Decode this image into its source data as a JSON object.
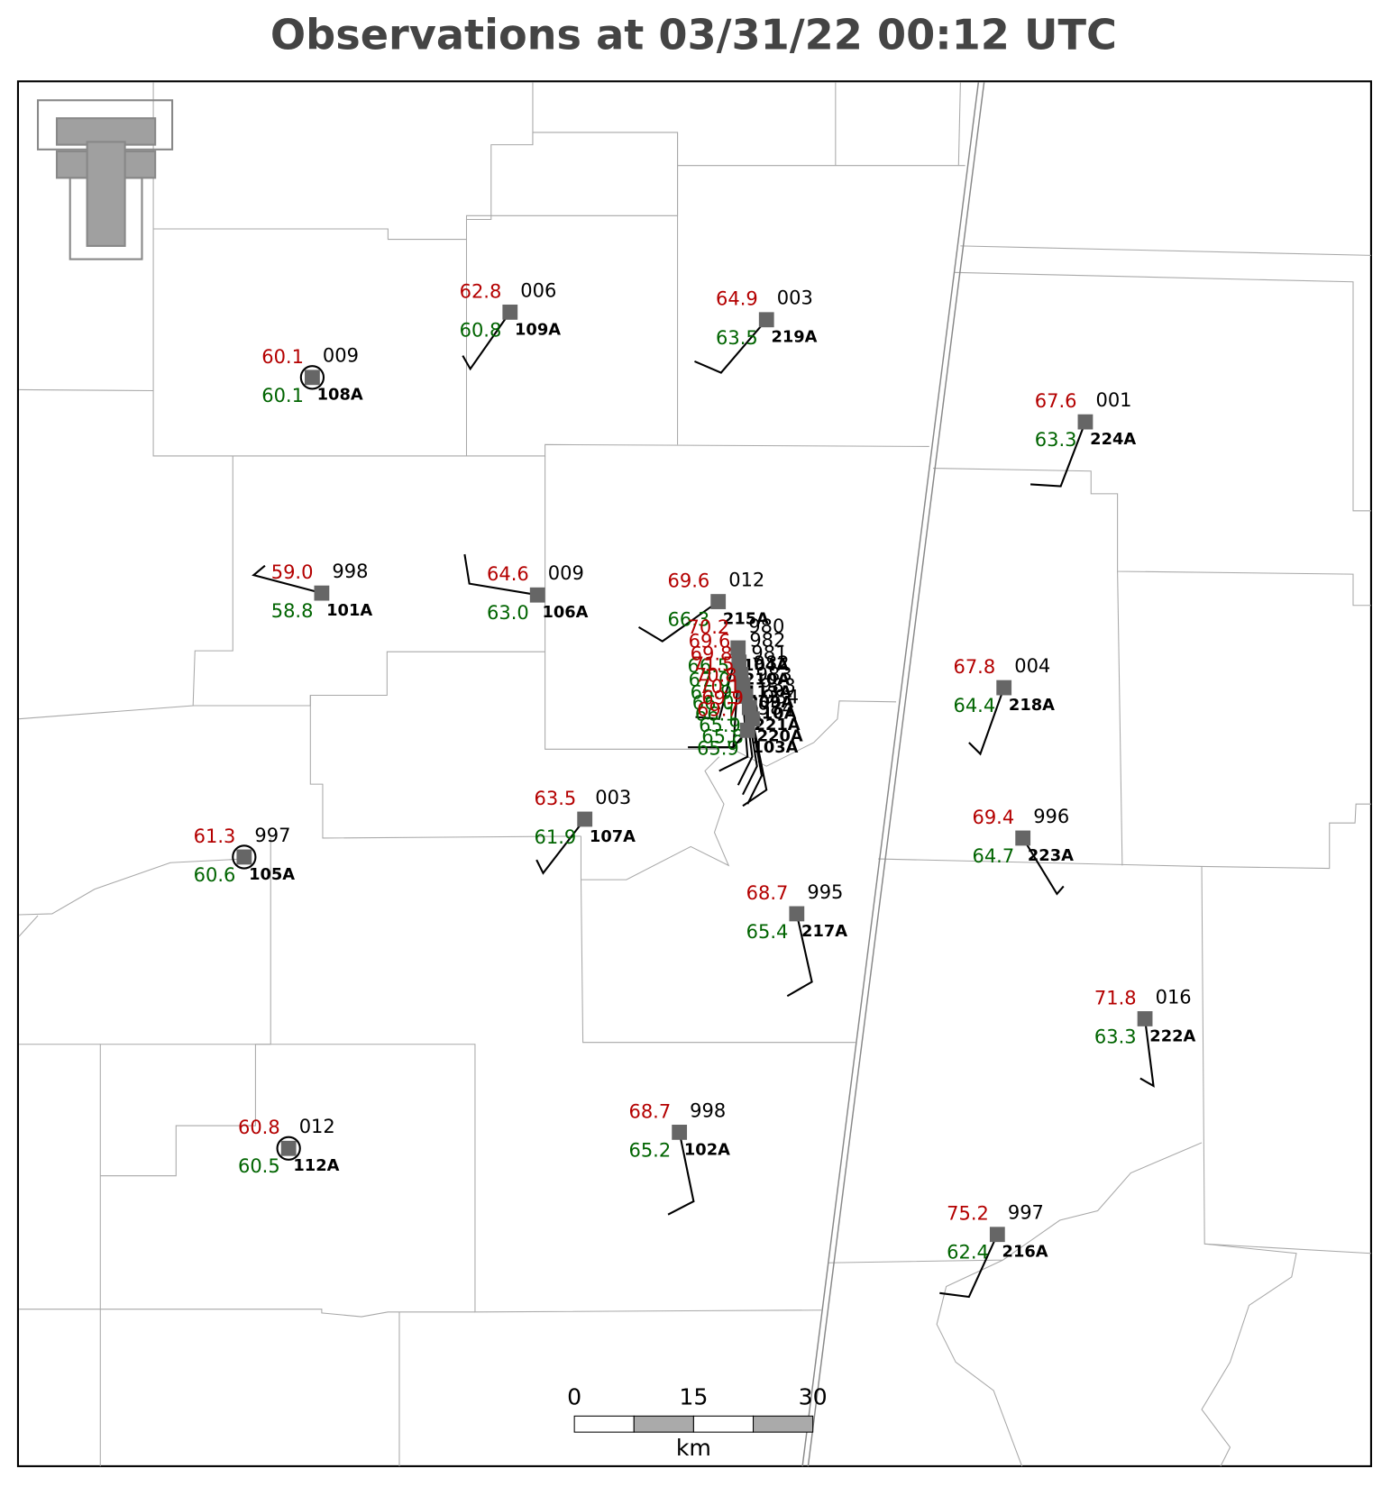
{
  "title": "Observations at 03/31/22 00:12 UTC",
  "stations": [
    {
      "id": "108A",
      "temp": "60.1",
      "dewpoint": "60.1",
      "pressure": "009"
    },
    {
      "id": "109A",
      "temp": "62.8",
      "dewpoint": "60.8",
      "pressure": "006"
    },
    {
      "id": "219A",
      "temp": "64.9",
      "dewpoint": "63.5",
      "pressure": "003"
    },
    {
      "id": "224A",
      "temp": "67.6",
      "dewpoint": "63.3",
      "pressure": "001"
    },
    {
      "id": "101A",
      "temp": "59.0",
      "dewpoint": "58.8",
      "pressure": "998"
    },
    {
      "id": "106A",
      "temp": "64.6",
      "dewpoint": "63.0",
      "pressure": "009"
    },
    {
      "id": "215A",
      "temp": "69.6",
      "dewpoint": "66.3",
      "pressure": "012"
    },
    {
      "id": "104A",
      "temp": "70.2",
      "dewpoint": "66.5",
      "pressure": "980"
    },
    {
      "id": "210A",
      "temp": "69.6",
      "dewpoint": "67.0",
      "pressure": "982"
    },
    {
      "id": "113A",
      "temp": "69.8",
      "dewpoint": "65.9",
      "pressure": "981"
    },
    {
      "id": "209A",
      "temp": "71.5",
      "dewpoint": "66.0",
      "pressure": "982"
    },
    {
      "id": "110A",
      "temp": "70.8",
      "dewpoint": "66.1",
      "pressure": "983"
    },
    {
      "id": "221A",
      "temp": "70.1",
      "dewpoint": "65.9",
      "pressure": "983"
    },
    {
      "id": "220A",
      "temp": "69.9",
      "dewpoint": "65.8",
      "pressure": "984"
    },
    {
      "id": "103A",
      "temp": "69.7",
      "dewpoint": "65.9",
      "pressure": "984"
    },
    {
      "id": "218A",
      "temp": "67.8",
      "dewpoint": "64.4",
      "pressure": "004"
    },
    {
      "id": "107A",
      "temp": "63.5",
      "dewpoint": "61.9",
      "pressure": "003"
    },
    {
      "id": "105A",
      "temp": "61.3",
      "dewpoint": "60.6",
      "pressure": "997"
    },
    {
      "id": "223A",
      "temp": "69.4",
      "dewpoint": "64.7",
      "pressure": "996"
    },
    {
      "id": "217A",
      "temp": "68.7",
      "dewpoint": "65.4",
      "pressure": "995"
    },
    {
      "id": "222A",
      "temp": "71.8",
      "dewpoint": "63.3",
      "pressure": "016"
    },
    {
      "id": "112A",
      "temp": "60.8",
      "dewpoint": "60.5",
      "pressure": "012"
    },
    {
      "id": "102A",
      "temp": "68.7",
      "dewpoint": "65.2",
      "pressure": "998"
    },
    {
      "id": "216A",
      "temp": "75.2",
      "dewpoint": "62.4",
      "pressure": "997"
    }
  ],
  "scale_bar": {
    "ticks": [
      0,
      15,
      30
    ],
    "unit": "km"
  }
}
